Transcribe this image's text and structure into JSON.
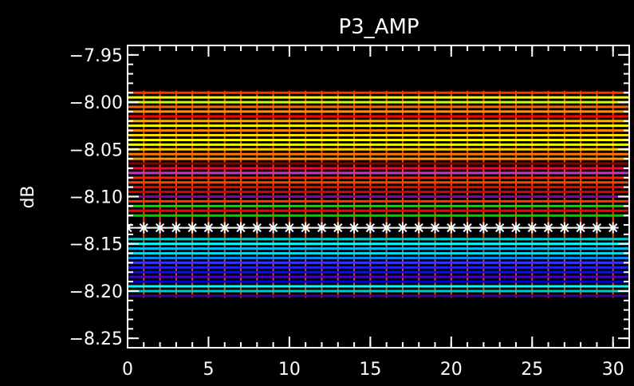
{
  "chart_data": {
    "type": "line",
    "title": "P3_AMP",
    "xlabel": "",
    "ylabel": "dB",
    "xlim": [
      0,
      31
    ],
    "ylim": [
      -8.26,
      -7.94
    ],
    "xticks": [
      0,
      5,
      10,
      15,
      20,
      25,
      30
    ],
    "xtick_labels": [
      "0",
      "5",
      "10",
      "15",
      "20",
      "25",
      "30"
    ],
    "yticks": [
      -7.95,
      -8.0,
      -8.05,
      -8.1,
      -8.15,
      -8.2,
      -8.25
    ],
    "ytick_labels": [
      "−7.95",
      "−8.00",
      "−8.05",
      "−8.10",
      "−8.15",
      "−8.20",
      "−8.25"
    ],
    "x": [
      0,
      1,
      2,
      3,
      4,
      5,
      6,
      7,
      8,
      9,
      10,
      11,
      12,
      13,
      14,
      15,
      16,
      17,
      18,
      19,
      20,
      21,
      22,
      23,
      24,
      25,
      26,
      27,
      28,
      29,
      30
    ],
    "band_top_y": -7.988,
    "band_bottom_y": -8.207,
    "mean_series": {
      "marker": "asterisk",
      "color": "#ffffff",
      "y": -8.133
    },
    "level_lines": [
      {
        "y": -7.99,
        "color": "#ff3300"
      },
      {
        "y": -7.995,
        "color": "#ffff00"
      },
      {
        "y": -8.0,
        "color": "#ccff00"
      },
      {
        "y": -8.005,
        "color": "#ff6600"
      },
      {
        "y": -8.01,
        "color": "#ff9900"
      },
      {
        "y": -8.015,
        "color": "#ff0000"
      },
      {
        "y": -8.02,
        "color": "#ffaa00"
      },
      {
        "y": -8.025,
        "color": "#ffff00"
      },
      {
        "y": -8.03,
        "color": "#ff8800"
      },
      {
        "y": -8.035,
        "color": "#ffdd00"
      },
      {
        "y": -8.04,
        "color": "#ffff00"
      },
      {
        "y": -8.045,
        "color": "#eeff00"
      },
      {
        "y": -8.05,
        "color": "#ffcc00"
      },
      {
        "y": -8.055,
        "color": "#ff7700"
      },
      {
        "y": -8.06,
        "color": "#ff9900"
      },
      {
        "y": -8.065,
        "color": "#880000"
      },
      {
        "y": -8.07,
        "color": "#ff0044"
      },
      {
        "y": -8.075,
        "color": "#cc33cc"
      },
      {
        "y": -8.08,
        "color": "#ff2200"
      },
      {
        "y": -8.085,
        "color": "#ff4400"
      },
      {
        "y": -8.09,
        "color": "#ff0000"
      },
      {
        "y": -8.095,
        "color": "#dd0000"
      },
      {
        "y": -8.1,
        "color": "#8800aa"
      },
      {
        "y": -8.105,
        "color": "#ff3300"
      },
      {
        "y": -8.11,
        "color": "#00dd00"
      },
      {
        "y": -8.115,
        "color": "#ff0000"
      },
      {
        "y": -8.12,
        "color": "#00cc00"
      },
      {
        "y": -8.145,
        "color": "#00cccc"
      },
      {
        "y": -8.15,
        "color": "#00ffff"
      },
      {
        "y": -8.155,
        "color": "#00bbff"
      },
      {
        "y": -8.16,
        "color": "#00ddee"
      },
      {
        "y": -8.165,
        "color": "#0088ff"
      },
      {
        "y": -8.17,
        "color": "#3333ff"
      },
      {
        "y": -8.175,
        "color": "#2222ee"
      },
      {
        "y": -8.18,
        "color": "#1111cc"
      },
      {
        "y": -8.185,
        "color": "#4400cc"
      },
      {
        "y": -8.19,
        "color": "#0000dd"
      },
      {
        "y": -8.195,
        "color": "#00ffff"
      },
      {
        "y": -8.2,
        "color": "#00cccc"
      },
      {
        "y": -8.205,
        "color": "#440088"
      }
    ],
    "grid": false,
    "legend": "none"
  }
}
